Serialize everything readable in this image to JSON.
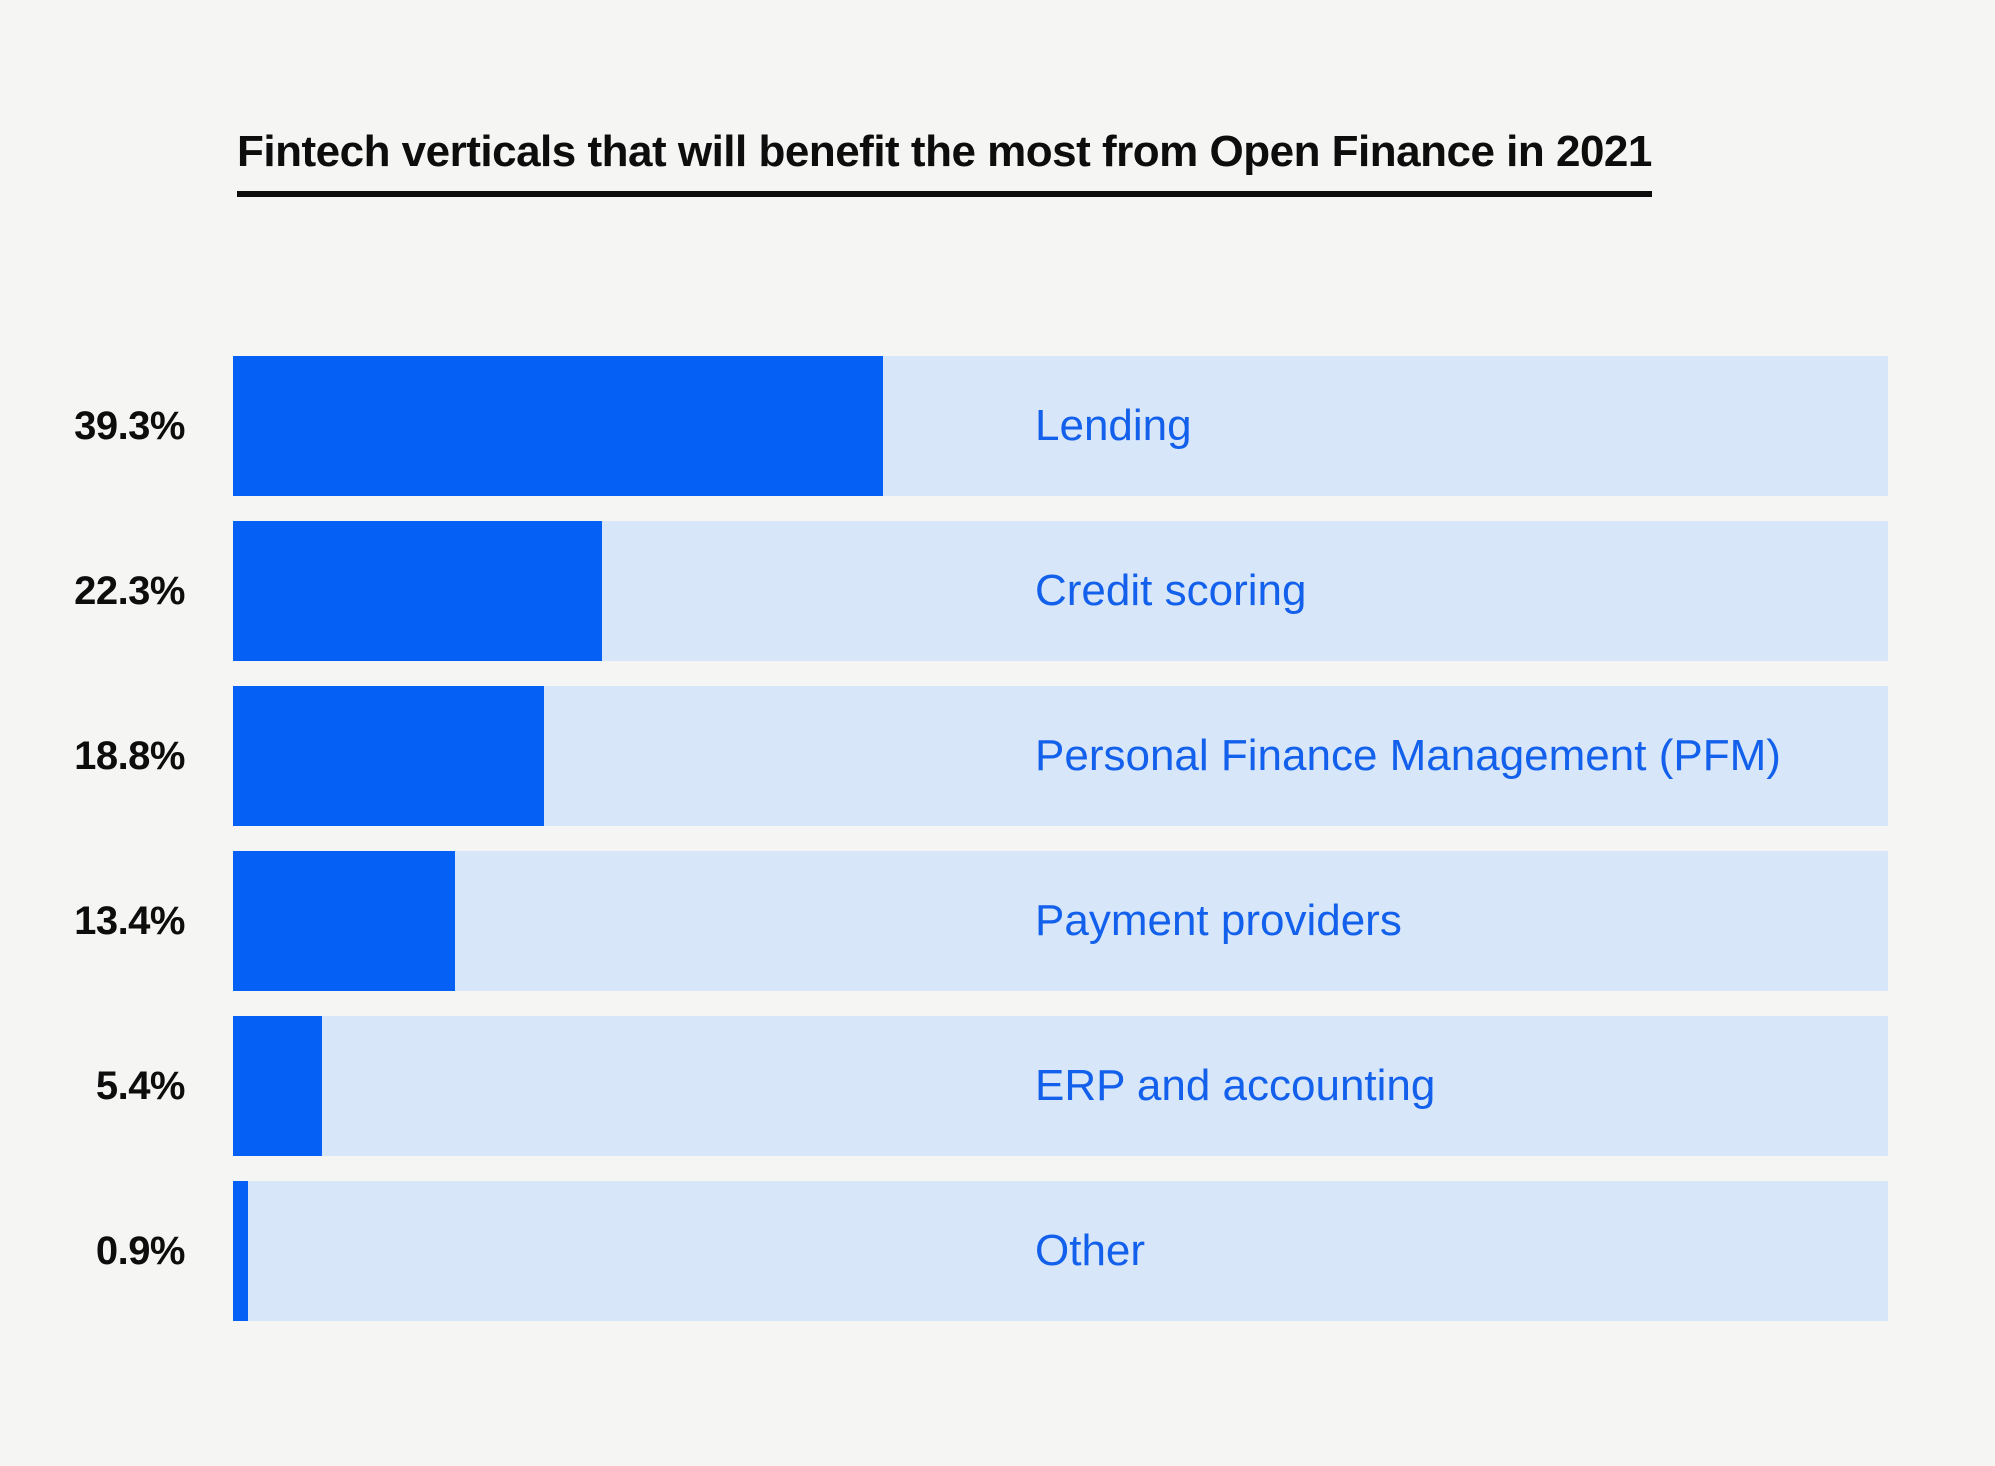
{
  "title": "Fintech verticals that will benefit the most from Open Finance in 2021",
  "colors": {
    "background": "#f5f5f3",
    "bar_fill": "#0561f5",
    "bar_track": "#d7e6f8",
    "category_text": "#1260eb",
    "title_text": "#0d0d0d"
  },
  "chart_data": {
    "type": "bar",
    "orientation": "horizontal",
    "title": "Fintech verticals that will benefit the most from Open Finance in 2021",
    "categories": [
      "Lending",
      "Credit scoring",
      "Personal Finance Management (PFM)",
      "Payment providers",
      "ERP and accounting",
      "Other"
    ],
    "values": [
      39.3,
      22.3,
      18.8,
      13.4,
      5.4,
      0.9
    ],
    "value_labels": [
      "39.3%",
      "22.3%",
      "18.8%",
      "13.4%",
      "5.4%",
      "0.9%"
    ],
    "xlabel": "",
    "ylabel": "",
    "xlim": [
      0,
      100
    ],
    "grid": false,
    "legend": "none",
    "value_label_position": "left-of-bar",
    "category_label_position": "inside-track"
  }
}
